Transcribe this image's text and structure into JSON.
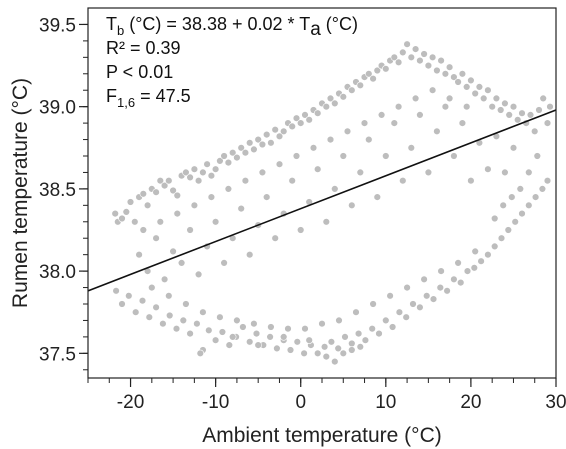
{
  "chart_data": {
    "type": "scatter",
    "xlabel": "Ambient temperature (°C)",
    "ylabel": "Rumen temperature (°C)",
    "xlim": [
      -25,
      30
    ],
    "ylim": [
      37.35,
      39.6
    ],
    "x_ticks": [
      -20,
      -10,
      0,
      10,
      20,
      30
    ],
    "x_tick_labels": [
      "-20",
      "-10",
      "0",
      "10",
      "20",
      "30"
    ],
    "x_minor_step": 2.5,
    "y_ticks": [
      37.5,
      38.0,
      38.5,
      39.0,
      39.5
    ],
    "y_tick_labels": [
      "37.5",
      "38.0",
      "38.5",
      "39.0",
      "39.5"
    ],
    "y_minor_step": 0.1,
    "grid": false,
    "point_color": "#bdbdbd",
    "point_stroke": "#ffffff",
    "line_color": "#111111",
    "fit_line": {
      "intercept": 38.38,
      "slope": 0.02
    },
    "annotations": [
      {
        "main": "T",
        "sub": "b",
        "rest": " (°C) = 38.38 + 0.02 * T",
        "sub2": "a",
        "rest2": " (°C)"
      },
      {
        "text": "R² = 0.39"
      },
      {
        "text": "P < 0.01"
      },
      {
        "main": "F",
        "sub": "1,6",
        "rest": " = 47.5"
      }
    ],
    "points": [
      [
        -21.8,
        38.35
      ],
      [
        -21.5,
        38.3
      ],
      [
        -21,
        38.32
      ],
      [
        -20.5,
        38.36
      ],
      [
        -20,
        38.42
      ],
      [
        -19.5,
        38.3
      ],
      [
        -19,
        38.45
      ],
      [
        -18.5,
        38.47
      ],
      [
        -18,
        38.4
      ],
      [
        -17.5,
        38.5
      ],
      [
        -17,
        38.48
      ],
      [
        -16.5,
        38.55
      ],
      [
        -16,
        38.52
      ],
      [
        -15.5,
        38.55
      ],
      [
        -15,
        38.49
      ],
      [
        -14.5,
        38.46
      ],
      [
        -14,
        38.58
      ],
      [
        -13.5,
        38.6
      ],
      [
        -13,
        38.57
      ],
      [
        -12.5,
        38.62
      ],
      [
        -12,
        38.55
      ],
      [
        -11.5,
        38.6
      ],
      [
        -11,
        38.65
      ],
      [
        -10.5,
        38.58
      ],
      [
        -10,
        38.62
      ],
      [
        -9.5,
        38.67
      ],
      [
        -9,
        38.7
      ],
      [
        -8.5,
        38.66
      ],
      [
        -8,
        38.72
      ],
      [
        -7.5,
        38.69
      ],
      [
        -7,
        38.75
      ],
      [
        -6.5,
        38.72
      ],
      [
        -6,
        38.78
      ],
      [
        -5.5,
        38.74
      ],
      [
        -5,
        38.8
      ],
      [
        -4.5,
        38.77
      ],
      [
        -4,
        38.83
      ],
      [
        -3.5,
        38.78
      ],
      [
        -3,
        38.86
      ],
      [
        -2.5,
        38.82
      ],
      [
        -2,
        38.85
      ],
      [
        -1.5,
        38.9
      ],
      [
        -1,
        38.88
      ],
      [
        -0.5,
        38.93
      ],
      [
        0,
        38.9
      ],
      [
        0.5,
        38.95
      ],
      [
        1,
        38.92
      ],
      [
        1.5,
        38.98
      ],
      [
        2,
        38.96
      ],
      [
        2.5,
        39.02
      ],
      [
        3,
        39.0
      ],
      [
        3.5,
        39.05
      ],
      [
        4,
        39.02
      ],
      [
        4.5,
        39.08
      ],
      [
        5,
        39.06
      ],
      [
        5.5,
        39.12
      ],
      [
        6,
        39.1
      ],
      [
        6.5,
        39.15
      ],
      [
        7,
        39.13
      ],
      [
        7.5,
        39.18
      ],
      [
        8,
        39.2
      ],
      [
        8.5,
        39.17
      ],
      [
        9,
        39.22
      ],
      [
        9.5,
        39.25
      ],
      [
        10,
        39.23
      ],
      [
        10.5,
        39.28
      ],
      [
        11,
        39.3
      ],
      [
        11.5,
        39.27
      ],
      [
        12,
        39.33
      ],
      [
        12.5,
        39.38
      ],
      [
        13,
        39.3
      ],
      [
        13.5,
        39.35
      ],
      [
        14,
        39.28
      ],
      [
        14.5,
        39.32
      ],
      [
        15,
        39.25
      ],
      [
        15.5,
        39.3
      ],
      [
        16,
        39.22
      ],
      [
        16.5,
        39.28
      ],
      [
        17,
        39.2
      ],
      [
        17.5,
        39.24
      ],
      [
        18,
        39.18
      ],
      [
        18.5,
        39.15
      ],
      [
        19,
        39.2
      ],
      [
        19.5,
        39.12
      ],
      [
        20,
        39.16
      ],
      [
        20.5,
        39.08
      ],
      [
        21,
        39.12
      ],
      [
        21.5,
        39.05
      ],
      [
        22,
        39.1
      ],
      [
        22.5,
        39.0
      ],
      [
        23,
        39.05
      ],
      [
        23.5,
        38.98
      ],
      [
        24,
        39.02
      ],
      [
        24.5,
        38.95
      ],
      [
        25,
        39.0
      ],
      [
        25.5,
        38.92
      ],
      [
        26,
        38.96
      ],
      [
        26.5,
        38.9
      ],
      [
        27,
        38.95
      ],
      [
        27.5,
        38.85
      ],
      [
        28,
        38.98
      ],
      [
        28.5,
        39.05
      ],
      [
        29,
        38.9
      ],
      [
        29.3,
        39.0
      ],
      [
        27.8,
        38.7
      ],
      [
        26.8,
        38.6
      ],
      [
        25.8,
        38.5
      ],
      [
        24.8,
        38.45
      ],
      [
        23.8,
        38.4
      ],
      [
        22.8,
        38.32
      ],
      [
        -21.7,
        37.88
      ],
      [
        -21,
        37.8
      ],
      [
        -20.2,
        37.85
      ],
      [
        -19.4,
        37.75
      ],
      [
        -18.6,
        37.82
      ],
      [
        -17.8,
        37.72
      ],
      [
        -17,
        37.78
      ],
      [
        -16.2,
        37.68
      ],
      [
        -15.4,
        37.73
      ],
      [
        -14.6,
        37.65
      ],
      [
        -13.8,
        37.7
      ],
      [
        -13,
        37.62
      ],
      [
        -12.2,
        37.68
      ],
      [
        -11.5,
        37.52
      ],
      [
        -10.8,
        37.64
      ],
      [
        -10,
        37.58
      ],
      [
        -9.2,
        37.63
      ],
      [
        -8.4,
        37.55
      ],
      [
        -7.6,
        37.6
      ],
      [
        -6.8,
        37.66
      ],
      [
        -6,
        37.57
      ],
      [
        -5.2,
        37.62
      ],
      [
        -4.4,
        37.55
      ],
      [
        -3.6,
        37.6
      ],
      [
        -2.8,
        37.53
      ],
      [
        -2,
        37.58
      ],
      [
        -1.2,
        37.52
      ],
      [
        -0.4,
        37.57
      ],
      [
        0.4,
        37.5
      ],
      [
        1.2,
        37.55
      ],
      [
        2,
        37.5
      ],
      [
        2.8,
        37.54
      ],
      [
        3.6,
        37.57
      ],
      [
        4.4,
        37.53
      ],
      [
        5.2,
        37.6
      ],
      [
        6,
        37.56
      ],
      [
        6.8,
        37.62
      ],
      [
        7.6,
        37.58
      ],
      [
        8.4,
        37.65
      ],
      [
        9.2,
        37.62
      ],
      [
        10,
        37.7
      ],
      [
        10.8,
        37.66
      ],
      [
        11.6,
        37.75
      ],
      [
        12.4,
        37.72
      ],
      [
        13.2,
        37.8
      ],
      [
        14,
        37.78
      ],
      [
        14.8,
        37.85
      ],
      [
        15.6,
        37.83
      ],
      [
        16.4,
        37.9
      ],
      [
        17.2,
        37.88
      ],
      [
        18,
        37.95
      ],
      [
        18.8,
        37.93
      ],
      [
        19.6,
        38.0
      ],
      [
        20.4,
        38.02
      ],
      [
        21.2,
        38.06
      ],
      [
        22,
        38.1
      ],
      [
        22.8,
        38.15
      ],
      [
        23.6,
        38.2
      ],
      [
        24.4,
        38.25
      ],
      [
        25.2,
        38.3
      ],
      [
        26,
        38.35
      ],
      [
        26.8,
        38.4
      ],
      [
        27.6,
        38.45
      ],
      [
        28.4,
        38.5
      ],
      [
        29,
        38.55
      ],
      [
        -19,
        38.1
      ],
      [
        -18,
        38.0
      ],
      [
        -17,
        38.2
      ],
      [
        -16,
        37.95
      ],
      [
        -15,
        38.12
      ],
      [
        -14,
        38.05
      ],
      [
        -13,
        38.25
      ],
      [
        -12,
        37.98
      ],
      [
        -11,
        38.15
      ],
      [
        -10,
        38.3
      ],
      [
        -9,
        38.05
      ],
      [
        -8,
        38.2
      ],
      [
        -7,
        38.38
      ],
      [
        -6,
        38.1
      ],
      [
        -5,
        38.28
      ],
      [
        -4,
        38.45
      ],
      [
        -3,
        38.2
      ],
      [
        -2,
        38.35
      ],
      [
        -1,
        38.55
      ],
      [
        0,
        38.25
      ],
      [
        1,
        38.42
      ],
      [
        2,
        38.62
      ],
      [
        3,
        38.3
      ],
      [
        4,
        38.5
      ],
      [
        5,
        38.7
      ],
      [
        6,
        38.4
      ],
      [
        7,
        38.6
      ],
      [
        8,
        38.8
      ],
      [
        9,
        38.45
      ],
      [
        10,
        38.7
      ],
      [
        11,
        38.9
      ],
      [
        12,
        38.55
      ],
      [
        13,
        38.75
      ],
      [
        14,
        38.95
      ],
      [
        15,
        38.6
      ],
      [
        16,
        38.85
      ],
      [
        17,
        39.0
      ],
      [
        18,
        38.7
      ],
      [
        19,
        38.9
      ],
      [
        20,
        38.55
      ],
      [
        21,
        38.78
      ],
      [
        22,
        38.62
      ],
      [
        23,
        38.82
      ],
      [
        24,
        38.6
      ],
      [
        25,
        38.75
      ],
      [
        -18.5,
        38.25
      ],
      [
        -16.5,
        38.3
      ],
      [
        -14.5,
        38.35
      ],
      [
        -12.5,
        38.4
      ],
      [
        -10.5,
        38.45
      ],
      [
        -8.5,
        38.5
      ],
      [
        -6.5,
        38.55
      ],
      [
        -4.5,
        38.6
      ],
      [
        -2.5,
        38.65
      ],
      [
        -0.5,
        38.7
      ],
      [
        1.5,
        38.75
      ],
      [
        3.5,
        38.8
      ],
      [
        5.5,
        38.85
      ],
      [
        7.5,
        38.9
      ],
      [
        9.5,
        38.95
      ],
      [
        11.5,
        39.0
      ],
      [
        13.5,
        39.05
      ],
      [
        15.5,
        39.1
      ],
      [
        17.5,
        39.05
      ],
      [
        19.5,
        39.0
      ],
      [
        -17.5,
        37.9
      ],
      [
        -15.5,
        37.85
      ],
      [
        -13.5,
        37.8
      ],
      [
        -11.5,
        37.75
      ],
      [
        -9.5,
        37.72
      ],
      [
        -7.5,
        37.7
      ],
      [
        -5.5,
        37.68
      ],
      [
        -3.5,
        37.66
      ],
      [
        -1.5,
        37.65
      ],
      [
        0.5,
        37.65
      ],
      [
        2.5,
        37.68
      ],
      [
        4.5,
        37.7
      ],
      [
        6.5,
        37.75
      ],
      [
        8.5,
        37.8
      ],
      [
        10.5,
        37.85
      ],
      [
        12.5,
        37.9
      ],
      [
        14.5,
        37.95
      ],
      [
        16.5,
        38.0
      ],
      [
        18.5,
        38.05
      ],
      [
        20.5,
        38.12
      ],
      [
        -2,
        37.6
      ],
      [
        3,
        37.48
      ],
      [
        5,
        37.5
      ],
      [
        6,
        37.52
      ],
      [
        4,
        37.45
      ],
      [
        -5,
        37.55
      ],
      [
        -8,
        37.6
      ],
      [
        -11.8,
        37.5
      ],
      [
        1,
        37.58
      ],
      [
        7,
        37.54
      ]
    ]
  }
}
